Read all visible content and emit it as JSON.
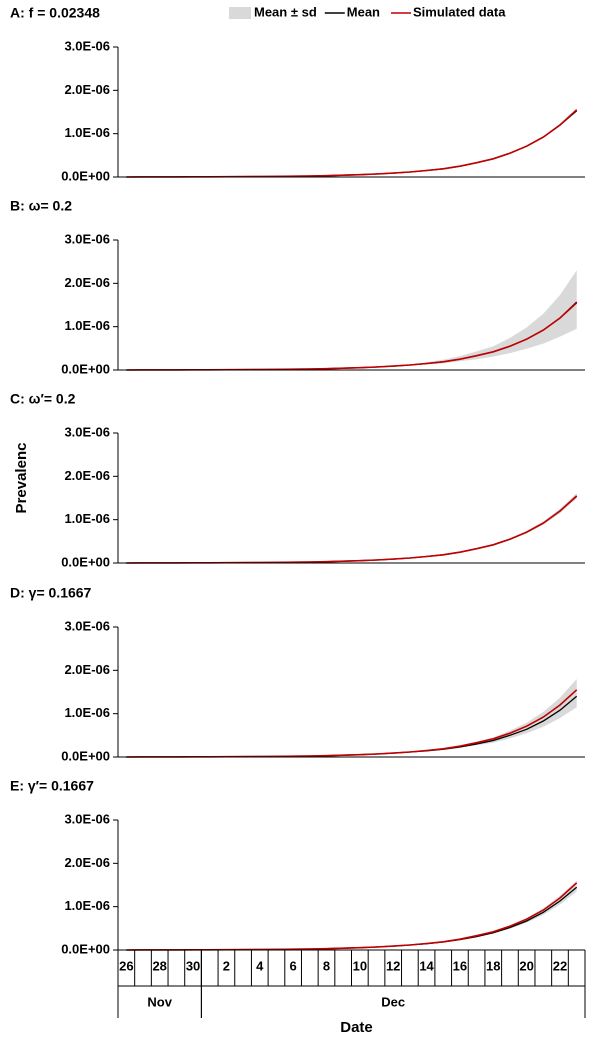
{
  "chart_data": [
    {
      "type": "line",
      "title": "A: f = 0.02348",
      "legend": "top-right",
      "ylim": [
        0,
        3e-06
      ],
      "yticks": [
        {
          "value": 0,
          "label": "0.0E+00"
        },
        {
          "value": 1e-06,
          "label": "1.0E-06"
        },
        {
          "value": 2e-06,
          "label": "2.0E-06"
        },
        {
          "value": 3e-06,
          "label": "3.0E-06"
        }
      ],
      "series": [
        {
          "name": "Mean ± sd",
          "type": "band",
          "color": "#d9d9d9",
          "lower": [
            1e-09,
            2e-09,
            2e-09,
            3e-09,
            4e-09,
            5e-09,
            7e-09,
            9e-09,
            1.1e-08,
            1.4e-08,
            1.9e-08,
            2.4e-08,
            3.1e-08,
            4.1e-08,
            5.3e-08,
            6.9e-08,
            8.9e-08,
            1.15e-07,
            1.45e-07,
            1.85e-07,
            2.45e-07,
            3.2e-07,
            4.1e-07,
            5.4e-07,
            6.9e-07,
            9e-07,
            1.17e-06,
            1.51e-06
          ],
          "upper": [
            1e-09,
            2e-09,
            2e-09,
            3e-09,
            4e-09,
            5e-09,
            7e-09,
            9e-09,
            1.1e-08,
            1.4e-08,
            1.9e-08,
            2.4e-08,
            3.1e-08,
            4.1e-08,
            5.3e-08,
            6.9e-08,
            8.9e-08,
            1.15e-07,
            1.55e-07,
            1.95e-07,
            2.55e-07,
            3.4e-07,
            4.3e-07,
            5.6e-07,
            7.3e-07,
            9.4e-07,
            1.23e-06,
            1.59e-06
          ]
        },
        {
          "name": "Mean",
          "color": "#000000",
          "values": [
            1e-09,
            2e-09,
            2e-09,
            3e-09,
            4e-09,
            5e-09,
            7e-09,
            9e-09,
            1.1e-08,
            1.4e-08,
            1.9e-08,
            2.4e-08,
            3.1e-08,
            4.1e-08,
            5.3e-08,
            6.9e-08,
            8.9e-08,
            1.15e-07,
            1.5e-07,
            1.9e-07,
            2.5e-07,
            3.3e-07,
            4.2e-07,
            5.5e-07,
            7.1e-07,
            9.2e-07,
            1.2e-06,
            1.53e-06
          ]
        },
        {
          "name": "Simulated data",
          "color": "#c00000",
          "values": [
            1e-09,
            2e-09,
            2e-09,
            3e-09,
            4e-09,
            5e-09,
            7e-09,
            9e-09,
            1.1e-08,
            1.4e-08,
            1.9e-08,
            2.4e-08,
            3.1e-08,
            4.1e-08,
            5.3e-08,
            6.9e-08,
            8.9e-08,
            1.15e-07,
            1.5e-07,
            1.9e-07,
            2.5e-07,
            3.3e-07,
            4.2e-07,
            5.5e-07,
            7.1e-07,
            9.2e-07,
            1.2e-06,
            1.55e-06
          ]
        }
      ]
    },
    {
      "type": "line",
      "title": "B: ω= 0.2",
      "ylim": [
        0,
        3e-06
      ],
      "yticks": [
        {
          "value": 0,
          "label": "0.0E+00"
        },
        {
          "value": 1e-06,
          "label": "1.0E-06"
        },
        {
          "value": 2e-06,
          "label": "2.0E-06"
        },
        {
          "value": 3e-06,
          "label": "3.0E-06"
        }
      ],
      "series": [
        {
          "type": "band",
          "color": "#d9d9d9",
          "lower": [
            1e-09,
            2e-09,
            2e-09,
            3e-09,
            4e-09,
            5e-09,
            7e-09,
            9e-09,
            1.1e-08,
            1.4e-08,
            1.9e-08,
            2.4e-08,
            3.1e-08,
            4.1e-08,
            5.3e-08,
            6.9e-08,
            8.9e-08,
            1.15e-07,
            1.24e-07,
            1.53e-07,
            2e-07,
            2.5e-07,
            3.1e-07,
            3.9e-07,
            4.9e-07,
            6.1e-07,
            7.7e-07,
            9.5e-07
          ],
          "upper": [
            1e-09,
            2e-09,
            2e-09,
            3e-09,
            4e-09,
            5e-09,
            7e-09,
            9e-09,
            1.1e-08,
            1.4e-08,
            1.9e-08,
            2.4e-08,
            3.1e-08,
            4.1e-08,
            5.3e-08,
            6.9e-08,
            8.9e-08,
            1.15e-07,
            1.8e-07,
            2.35e-07,
            3.2e-07,
            4.3e-07,
            5.5e-07,
            7.4e-07,
            9.8e-07,
            1.3e-06,
            1.73e-06,
            2.3e-06
          ]
        },
        {
          "color": "#000000",
          "values": [
            1e-09,
            2e-09,
            2e-09,
            3e-09,
            4e-09,
            5e-09,
            7e-09,
            9e-09,
            1.1e-08,
            1.4e-08,
            1.9e-08,
            2.4e-08,
            3.1e-08,
            4.1e-08,
            5.3e-08,
            6.9e-08,
            8.9e-08,
            1.15e-07,
            1.5e-07,
            1.9e-07,
            2.5e-07,
            3.3e-07,
            4.2e-07,
            5.5e-07,
            7.1e-07,
            9.2e-07,
            1.2e-06,
            1.57e-06
          ]
        },
        {
          "color": "#c00000",
          "values": [
            1e-09,
            2e-09,
            2e-09,
            3e-09,
            4e-09,
            5e-09,
            7e-09,
            9e-09,
            1.1e-08,
            1.4e-08,
            1.9e-08,
            2.4e-08,
            3.1e-08,
            4.1e-08,
            5.3e-08,
            6.9e-08,
            8.9e-08,
            1.15e-07,
            1.5e-07,
            1.9e-07,
            2.5e-07,
            3.3e-07,
            4.2e-07,
            5.5e-07,
            7.1e-07,
            9.2e-07,
            1.2e-06,
            1.55e-06
          ]
        }
      ]
    },
    {
      "type": "line",
      "title": "C: ω′= 0.2",
      "y_label": "Prevalenc",
      "ylim": [
        0,
        3e-06
      ],
      "yticks": [
        {
          "value": 0,
          "label": "0.0E+00"
        },
        {
          "value": 1e-06,
          "label": "1.0E-06"
        },
        {
          "value": 2e-06,
          "label": "2.0E-06"
        },
        {
          "value": 3e-06,
          "label": "3.0E-06"
        }
      ],
      "series": [
        {
          "type": "band",
          "color": "#d9d9d9",
          "lower": [
            1e-09,
            2e-09,
            2e-09,
            3e-09,
            4e-09,
            5e-09,
            7e-09,
            9e-09,
            1.1e-08,
            1.4e-08,
            1.9e-08,
            2.4e-08,
            3.1e-08,
            4.1e-08,
            5.3e-08,
            6.9e-08,
            8.9e-08,
            1.15e-07,
            1.4e-07,
            1.8e-07,
            2.4e-07,
            3.2e-07,
            4e-07,
            5.3e-07,
            6.8e-07,
            8.8e-07,
            1.15e-06,
            1.49e-06
          ],
          "upper": [
            1e-09,
            2e-09,
            2e-09,
            3e-09,
            4e-09,
            5e-09,
            7e-09,
            9e-09,
            1.1e-08,
            1.4e-08,
            1.9e-08,
            2.4e-08,
            3.1e-08,
            4.1e-08,
            5.3e-08,
            6.9e-08,
            8.9e-08,
            1.15e-07,
            1.6e-07,
            2e-07,
            2.6e-07,
            3.4e-07,
            4.4e-07,
            5.7e-07,
            7.4e-07,
            9.6e-07,
            1.25e-06,
            1.61e-06
          ]
        },
        {
          "color": "#000000",
          "values": [
            1e-09,
            2e-09,
            2e-09,
            3e-09,
            4e-09,
            5e-09,
            7e-09,
            9e-09,
            1.1e-08,
            1.4e-08,
            1.9e-08,
            2.4e-08,
            3.1e-08,
            4.1e-08,
            5.3e-08,
            6.9e-08,
            8.9e-08,
            1.15e-07,
            1.5e-07,
            1.9e-07,
            2.5e-07,
            3.3e-07,
            4.2e-07,
            5.5e-07,
            7.1e-07,
            9.2e-07,
            1.2e-06,
            1.54e-06
          ]
        },
        {
          "color": "#c00000",
          "values": [
            1e-09,
            2e-09,
            2e-09,
            3e-09,
            4e-09,
            5e-09,
            7e-09,
            9e-09,
            1.1e-08,
            1.4e-08,
            1.9e-08,
            2.4e-08,
            3.1e-08,
            4.1e-08,
            5.3e-08,
            6.9e-08,
            8.9e-08,
            1.15e-07,
            1.5e-07,
            1.9e-07,
            2.5e-07,
            3.3e-07,
            4.2e-07,
            5.5e-07,
            7.1e-07,
            9.2e-07,
            1.2e-06,
            1.55e-06
          ]
        }
      ]
    },
    {
      "type": "line",
      "title": "D: γ= 0.1667",
      "ylim": [
        0,
        3e-06
      ],
      "yticks": [
        {
          "value": 0,
          "label": "0.0E+00"
        },
        {
          "value": 1e-06,
          "label": "1.0E-06"
        },
        {
          "value": 2e-06,
          "label": "2.0E-06"
        },
        {
          "value": 3e-06,
          "label": "3.0E-06"
        }
      ],
      "series": [
        {
          "type": "band",
          "color": "#d9d9d9",
          "lower": [
            1e-09,
            2e-09,
            2e-09,
            3e-09,
            4e-09,
            5e-09,
            7e-09,
            9e-09,
            1.1e-08,
            1.4e-08,
            1.9e-08,
            2.4e-08,
            3.1e-08,
            4.1e-08,
            5.3e-08,
            6.9e-08,
            8.9e-08,
            1.15e-07,
            1.3e-07,
            1.6e-07,
            2.1e-07,
            2.7e-07,
            3.3e-07,
            4.3e-07,
            5.5e-07,
            7e-07,
            9e-07,
            1.15e-06
          ],
          "upper": [
            1e-09,
            2e-09,
            2e-09,
            3e-09,
            4e-09,
            5e-09,
            7e-09,
            9e-09,
            1.1e-08,
            1.4e-08,
            1.9e-08,
            2.4e-08,
            3.1e-08,
            4.1e-08,
            5.3e-08,
            6.9e-08,
            8.9e-08,
            1.15e-07,
            1.6e-07,
            2.1e-07,
            2.7e-07,
            3.5e-07,
            4.5e-07,
            6.1e-07,
            7.9e-07,
            1.04e-06,
            1.37e-06,
            1.8e-06
          ]
        },
        {
          "color": "#000000",
          "values": [
            1e-09,
            2e-09,
            2e-09,
            3e-09,
            4e-09,
            5e-09,
            7e-09,
            9e-09,
            1.1e-08,
            1.4e-08,
            1.9e-08,
            2.4e-08,
            3.1e-08,
            4.1e-08,
            5.3e-08,
            6.9e-08,
            8.9e-08,
            1.15e-07,
            1.4e-07,
            1.8e-07,
            2.3e-07,
            3e-07,
            3.8e-07,
            5e-07,
            6.4e-07,
            8.3e-07,
            1.08e-06,
            1.4e-06
          ]
        },
        {
          "color": "#c00000",
          "values": [
            1e-09,
            2e-09,
            2e-09,
            3e-09,
            4e-09,
            5e-09,
            7e-09,
            9e-09,
            1.1e-08,
            1.4e-08,
            1.9e-08,
            2.4e-08,
            3.1e-08,
            4.1e-08,
            5.3e-08,
            6.9e-08,
            8.9e-08,
            1.15e-07,
            1.5e-07,
            1.9e-07,
            2.5e-07,
            3.3e-07,
            4.2e-07,
            5.5e-07,
            7.1e-07,
            9.2e-07,
            1.2e-06,
            1.55e-06
          ]
        }
      ]
    },
    {
      "type": "line",
      "title": "E: γ′= 0.1667",
      "x_label": "Date",
      "ylim": [
        0,
        3e-06
      ],
      "yticks": [
        {
          "value": 0,
          "label": "0.0E+00"
        },
        {
          "value": 1e-06,
          "label": "1.0E-06"
        },
        {
          "value": 2e-06,
          "label": "2.0E-06"
        },
        {
          "value": 3e-06,
          "label": "3.0E-06"
        }
      ],
      "category_groups": [
        {
          "name": "Nov",
          "categories": [
            "26",
            null,
            "28",
            null,
            "30"
          ]
        },
        {
          "name": "Dec",
          "categories": [
            null,
            "2",
            null,
            "4",
            null,
            "6",
            null,
            "8",
            null,
            "10",
            null,
            "12",
            null,
            "14",
            null,
            "16",
            null,
            "18",
            null,
            "20",
            null,
            "22",
            null
          ]
        }
      ],
      "series": [
        {
          "type": "band",
          "color": "#d9d9d9",
          "lower": [
            1e-09,
            2e-09,
            2e-09,
            3e-09,
            4e-09,
            5e-09,
            7e-09,
            9e-09,
            1.1e-08,
            1.4e-08,
            1.9e-08,
            2.4e-08,
            3.1e-08,
            4.1e-08,
            5.3e-08,
            6.9e-08,
            8.9e-08,
            1.15e-07,
            1.4e-07,
            1.8e-07,
            2.3e-07,
            3e-07,
            3.8e-07,
            4.9e-07,
            6.3e-07,
            8.1e-07,
            1.05e-06,
            1.35e-06
          ],
          "upper": [
            1e-09,
            2e-09,
            2e-09,
            3e-09,
            4e-09,
            5e-09,
            7e-09,
            9e-09,
            1.1e-08,
            1.4e-08,
            1.9e-08,
            2.4e-08,
            3.1e-08,
            4.1e-08,
            5.3e-08,
            6.9e-08,
            8.9e-08,
            1.15e-07,
            1.6e-07,
            2e-07,
            2.6e-07,
            3.4e-07,
            4.4e-07,
            5.7e-07,
            7.4e-07,
            9.6e-07,
            1.25e-06,
            1.6e-06
          ]
        },
        {
          "color": "#000000",
          "values": [
            1e-09,
            2e-09,
            2e-09,
            3e-09,
            4e-09,
            5e-09,
            7e-09,
            9e-09,
            1.1e-08,
            1.4e-08,
            1.9e-08,
            2.4e-08,
            3.1e-08,
            4.1e-08,
            5.3e-08,
            6.9e-08,
            8.9e-08,
            1.15e-07,
            1.45e-07,
            1.85e-07,
            2.4e-07,
            3.1e-07,
            4e-07,
            5.2e-07,
            6.7e-07,
            8.7e-07,
            1.13e-06,
            1.45e-06
          ]
        },
        {
          "color": "#c00000",
          "values": [
            1e-09,
            2e-09,
            2e-09,
            3e-09,
            4e-09,
            5e-09,
            7e-09,
            9e-09,
            1.1e-08,
            1.4e-08,
            1.9e-08,
            2.4e-08,
            3.1e-08,
            4.1e-08,
            5.3e-08,
            6.9e-08,
            8.9e-08,
            1.15e-07,
            1.5e-07,
            1.9e-07,
            2.5e-07,
            3.3e-07,
            4.2e-07,
            5.5e-07,
            7.1e-07,
            9.2e-07,
            1.2e-06,
            1.55e-06
          ]
        }
      ]
    }
  ]
}
